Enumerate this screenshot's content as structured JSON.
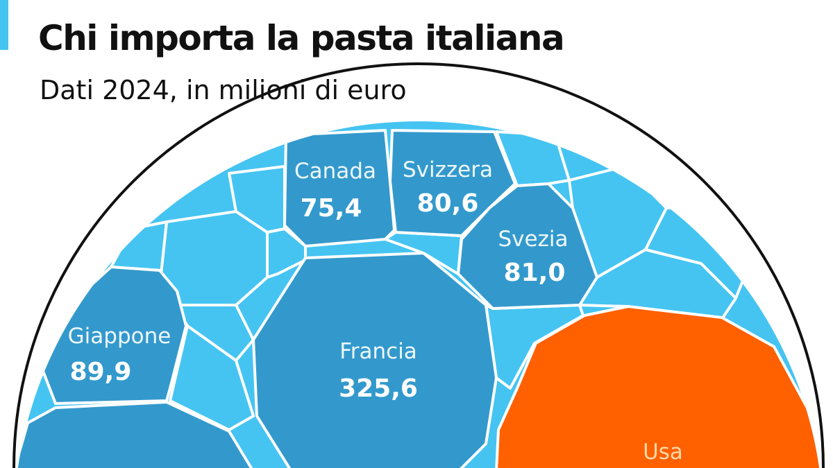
{
  "title": "Chi importa la pasta italiana",
  "subtitle": "Dati 2024, in milioni di euro",
  "colors": {
    "accent": "#45c4f2",
    "cell_light": "#45c4f2",
    "cell_dark": "#3399cc",
    "highlight": "#ff6000",
    "outline": "#111111"
  },
  "chart_data": {
    "type": "treemap",
    "layout": "voronoi half-circle",
    "unit": "milioni di euro",
    "items": [
      {
        "name": "Usa",
        "value": null,
        "highlight": true
      },
      {
        "name": "Francia",
        "value": 325.6,
        "label": "325,6"
      },
      {
        "name": "Giappone",
        "value": 89.9,
        "label": "89,9"
      },
      {
        "name": "Svezia",
        "value": 81.0,
        "label": "81,0"
      },
      {
        "name": "Svizzera",
        "value": 80.6,
        "label": "80,6"
      },
      {
        "name": "Canada",
        "value": 75.4,
        "label": "75,4"
      }
    ]
  }
}
